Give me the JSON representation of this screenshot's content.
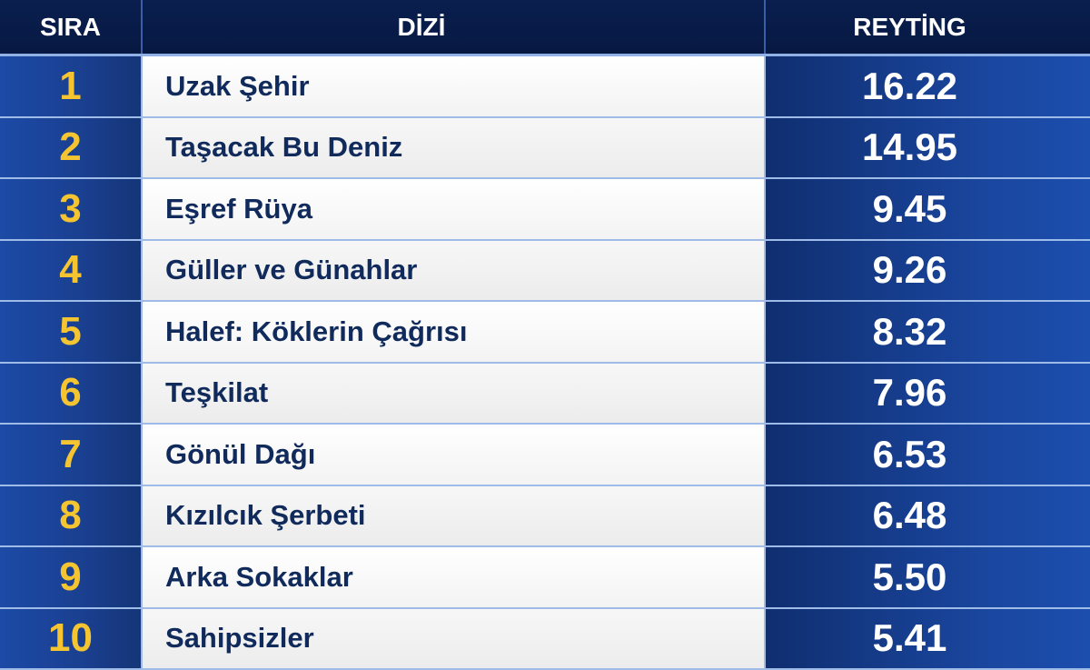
{
  "table": {
    "header": [
      "SIRA",
      "DİZİ",
      "REYTİNG"
    ],
    "rows": [
      [
        1,
        "Uzak Şehir",
        "16.22"
      ],
      [
        2,
        "Taşacak Bu Deniz",
        "14.95"
      ],
      [
        3,
        "Eşref Rüya",
        "9.45"
      ],
      [
        4,
        "Güller ve Günahlar",
        "9.26"
      ],
      [
        5,
        "Halef: Köklerin Çağrısı",
        "8.32"
      ],
      [
        6,
        "Teşkilat",
        "7.96"
      ],
      [
        7,
        "Gönül Dağı",
        "6.53"
      ],
      [
        8,
        "Kızılcık Şerbeti",
        "6.48"
      ],
      [
        9,
        "Arka Sokaklar",
        "5.50"
      ],
      [
        10,
        "Sahipsizler",
        "5.41"
      ]
    ]
  }
}
